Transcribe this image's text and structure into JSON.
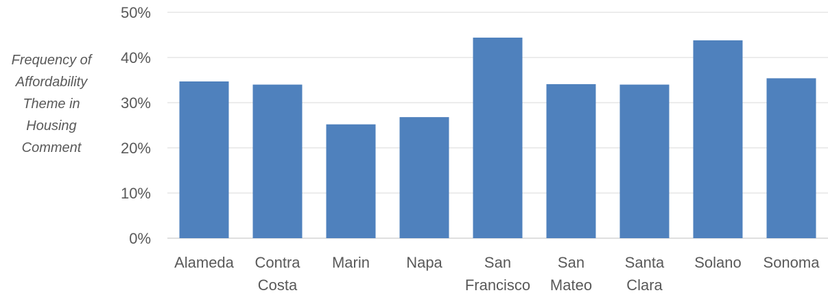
{
  "chart_data": {
    "type": "bar",
    "title": "",
    "xlabel": "",
    "ylabel_lines": [
      "Frequency of",
      "Affordability",
      "Theme in",
      "Housing",
      "Comment"
    ],
    "categories": [
      [
        "Alameda"
      ],
      [
        "Contra",
        "Costa"
      ],
      [
        "Marin"
      ],
      [
        "Napa"
      ],
      [
        "San",
        "Francisco"
      ],
      [
        "San",
        "Mateo"
      ],
      [
        "Santa",
        "Clara"
      ],
      [
        "Solano"
      ],
      [
        "Sonoma"
      ]
    ],
    "values": [
      34.7,
      34.0,
      25.2,
      26.8,
      44.4,
      34.1,
      34.0,
      43.8,
      35.4
    ],
    "ylim": [
      0,
      50
    ],
    "yticks": [
      "0%",
      "10%",
      "20%",
      "30%",
      "40%",
      "50%"
    ],
    "grid": true,
    "bar_color": "#4f81bd",
    "grid_color": "#d9d9d9",
    "text_color": "#595959"
  }
}
